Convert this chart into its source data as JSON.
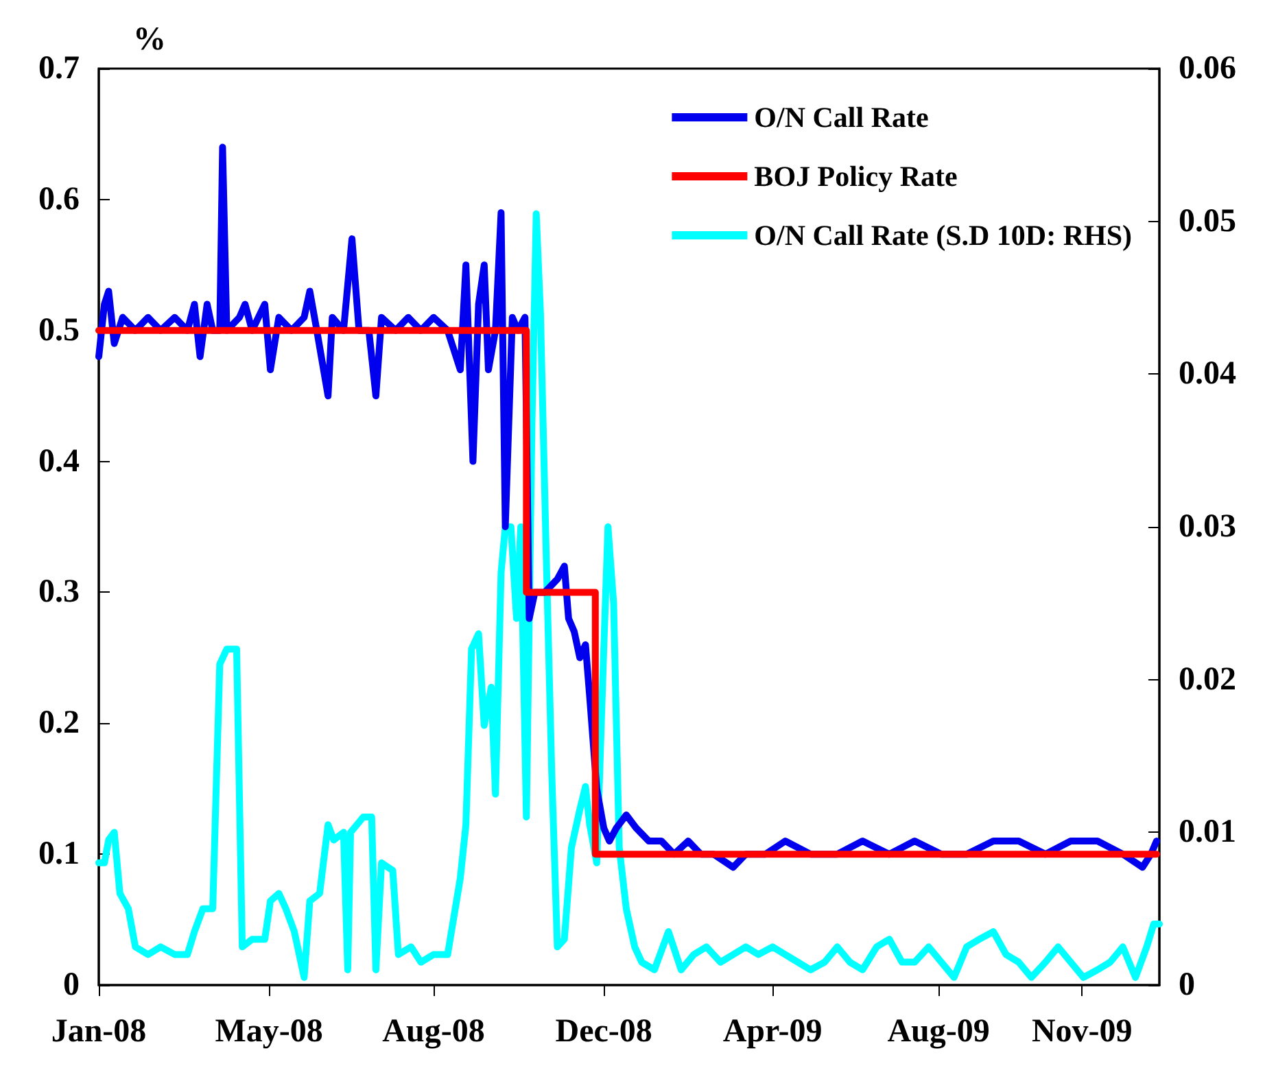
{
  "chart_data": {
    "type": "line",
    "ylabel": "%",
    "xlim": [
      "2008-01-01",
      "2010-01-24"
    ],
    "xticks": [
      {
        "value": "2008-01-01",
        "label": "Jan-08"
      },
      {
        "value": "2008-05-01",
        "label": "May-08"
      },
      {
        "value": "2008-08-26",
        "label": "Aug-08"
      },
      {
        "value": "2008-12-25",
        "label": "Dec-08"
      },
      {
        "value": "2009-04-24",
        "label": "Apr-09"
      },
      {
        "value": "2009-08-20",
        "label": "Aug-09"
      },
      {
        "value": "2009-11-30",
        "label": "Nov-09"
      }
    ],
    "ylim": [
      0,
      0.7
    ],
    "yticks": [
      0,
      0.1,
      0.2,
      0.3,
      0.4,
      0.5,
      0.6,
      0.7
    ],
    "y2lim": [
      0,
      0.06
    ],
    "y2ticks": [
      0,
      0.01,
      0.02,
      0.03,
      0.04,
      0.05,
      0.06
    ],
    "grid": false,
    "legend": "top right",
    "marker": "none",
    "line_style": "solid",
    "series": [
      {
        "name": "O/N Call Rate",
        "color": "#0000ee",
        "x": [
          "2008-01-01",
          "2008-01-05",
          "2008-01-08",
          "2008-01-12",
          "2008-01-18",
          "2008-01-27",
          "2008-02-05",
          "2008-02-14",
          "2008-02-24",
          "2008-03-04",
          "2008-03-09",
          "2008-03-13",
          "2008-03-18",
          "2008-03-22",
          "2008-03-27",
          "2008-03-29",
          "2008-04-01",
          "2008-04-10",
          "2008-04-14",
          "2008-04-19",
          "2008-04-28",
          "2008-05-02",
          "2008-05-08",
          "2008-05-17",
          "2008-05-26",
          "2008-05-30",
          "2008-06-04",
          "2008-06-12",
          "2008-06-15",
          "2008-06-23",
          "2008-06-29",
          "2008-07-04",
          "2008-07-11",
          "2008-07-16",
          "2008-07-20",
          "2008-07-30",
          "2008-08-08",
          "2008-08-17",
          "2008-08-26",
          "2008-09-05",
          "2008-09-14",
          "2008-09-18",
          "2008-09-23",
          "2008-09-27",
          "2008-10-01",
          "2008-10-04",
          "2008-10-09",
          "2008-10-13",
          "2008-10-16",
          "2008-10-21",
          "2008-10-25",
          "2008-10-30",
          "2008-11-02",
          "2008-11-06",
          "2008-11-13",
          "2008-11-22",
          "2008-11-27",
          "2008-11-30",
          "2008-12-04",
          "2008-12-08",
          "2008-12-12",
          "2008-12-15",
          "2008-12-20",
          "2008-12-25",
          "2008-12-29",
          "2009-01-03",
          "2009-01-10",
          "2009-01-17",
          "2009-01-26",
          "2009-02-04",
          "2009-02-13",
          "2009-02-23",
          "2009-03-04",
          "2009-03-13",
          "2009-03-27",
          "2009-04-05",
          "2009-04-19",
          "2009-05-03",
          "2009-05-21",
          "2009-06-09",
          "2009-06-27",
          "2009-07-16",
          "2009-08-03",
          "2009-08-22",
          "2009-09-09",
          "2009-09-28",
          "2009-10-16",
          "2009-11-04",
          "2009-11-22",
          "2009-12-11",
          "2009-12-29",
          "2010-01-12",
          "2010-01-18",
          "2010-01-22"
        ],
        "values": [
          0.48,
          0.52,
          0.53,
          0.49,
          0.51,
          0.5,
          0.51,
          0.5,
          0.51,
          0.5,
          0.52,
          0.48,
          0.52,
          0.5,
          0.5,
          0.64,
          0.5,
          0.51,
          0.52,
          0.5,
          0.52,
          0.47,
          0.51,
          0.5,
          0.51,
          0.53,
          0.5,
          0.45,
          0.51,
          0.5,
          0.57,
          0.5,
          0.5,
          0.45,
          0.51,
          0.5,
          0.51,
          0.5,
          0.51,
          0.5,
          0.47,
          0.55,
          0.4,
          0.52,
          0.55,
          0.47,
          0.5,
          0.59,
          0.35,
          0.51,
          0.5,
          0.51,
          0.28,
          0.3,
          0.3,
          0.31,
          0.32,
          0.28,
          0.27,
          0.25,
          0.26,
          0.22,
          0.15,
          0.12,
          0.11,
          0.12,
          0.13,
          0.12,
          0.11,
          0.11,
          0.1,
          0.11,
          0.1,
          0.1,
          0.09,
          0.1,
          0.1,
          0.11,
          0.1,
          0.1,
          0.11,
          0.1,
          0.11,
          0.1,
          0.1,
          0.11,
          0.11,
          0.1,
          0.11,
          0.11,
          0.1,
          0.09,
          0.1,
          0.11
        ]
      },
      {
        "name": "BOJ Policy Rate",
        "color": "#ff0000",
        "type": "step",
        "x": [
          "2008-01-01",
          "2008-10-31",
          "2008-12-19",
          "2010-01-22"
        ],
        "values": [
          0.5,
          0.3,
          0.1,
          0.1
        ]
      },
      {
        "name": "O/N Call Rate (S.D 10D: RHS)",
        "color": "#00ffff",
        "axis": "y2",
        "x": [
          "2008-01-01",
          "2008-01-05",
          "2008-01-08",
          "2008-01-12",
          "2008-01-16",
          "2008-01-22",
          "2008-01-27",
          "2008-02-05",
          "2008-02-14",
          "2008-02-24",
          "2008-03-04",
          "2008-03-09",
          "2008-03-15",
          "2008-03-22",
          "2008-03-27",
          "2008-04-01",
          "2008-04-08",
          "2008-04-12",
          "2008-04-19",
          "2008-04-28",
          "2008-05-02",
          "2008-05-08",
          "2008-05-13",
          "2008-05-19",
          "2008-05-26",
          "2008-05-30",
          "2008-06-06",
          "2008-06-12",
          "2008-06-16",
          "2008-06-23",
          "2008-06-26",
          "2008-06-28",
          "2008-07-07",
          "2008-07-13",
          "2008-07-16",
          "2008-07-20",
          "2008-07-28",
          "2008-08-01",
          "2008-08-10",
          "2008-08-17",
          "2008-08-26",
          "2008-09-05",
          "2008-09-14",
          "2008-09-18",
          "2008-09-22",
          "2008-09-27",
          "2008-10-01",
          "2008-10-06",
          "2008-10-09",
          "2008-10-13",
          "2008-10-16",
          "2008-10-20",
          "2008-10-24",
          "2008-10-27",
          "2008-10-31",
          "2008-11-04",
          "2008-11-07",
          "2008-11-10",
          "2008-11-14",
          "2008-11-18",
          "2008-11-22",
          "2008-11-27",
          "2008-12-02",
          "2008-12-08",
          "2008-12-12",
          "2008-12-15",
          "2008-12-20",
          "2008-12-25",
          "2008-12-28",
          "2009-01-01",
          "2009-01-05",
          "2009-01-10",
          "2009-01-16",
          "2009-01-21",
          "2009-01-30",
          "2009-02-09",
          "2009-02-18",
          "2009-02-27",
          "2009-03-08",
          "2009-03-18",
          "2009-03-27",
          "2009-04-05",
          "2009-04-14",
          "2009-04-24",
          "2009-05-03",
          "2009-05-12",
          "2009-05-21",
          "2009-05-31",
          "2009-06-09",
          "2009-06-18",
          "2009-06-27",
          "2009-07-07",
          "2009-07-16",
          "2009-07-25",
          "2009-08-03",
          "2009-08-13",
          "2009-08-22",
          "2009-08-31",
          "2009-09-09",
          "2009-09-18",
          "2009-09-28",
          "2009-10-07",
          "2009-10-16",
          "2009-10-25",
          "2009-11-04",
          "2009-11-13",
          "2009-11-22",
          "2009-12-01",
          "2009-12-11",
          "2009-12-20",
          "2009-12-29",
          "2010-01-07",
          "2010-01-15",
          "2010-01-20",
          "2010-01-24"
        ],
        "values": [
          0.008,
          0.008,
          0.0095,
          0.01,
          0.006,
          0.005,
          0.0025,
          0.002,
          0.0025,
          0.002,
          0.002,
          0.0035,
          0.005,
          0.005,
          0.021,
          0.022,
          0.022,
          0.0025,
          0.003,
          0.003,
          0.0055,
          0.006,
          0.005,
          0.0035,
          0.0005,
          0.0055,
          0.006,
          0.0105,
          0.0095,
          0.01,
          0.001,
          0.01,
          0.011,
          0.011,
          0.001,
          0.008,
          0.0075,
          0.002,
          0.0025,
          0.0015,
          0.002,
          0.002,
          0.007,
          0.0105,
          0.022,
          0.023,
          0.017,
          0.0195,
          0.0125,
          0.027,
          0.03,
          0.03,
          0.024,
          0.03,
          0.011,
          0.037,
          0.0505,
          0.044,
          0.0285,
          0.014,
          0.0025,
          0.003,
          0.009,
          0.0115,
          0.013,
          0.0105,
          0.008,
          0.022,
          0.03,
          0.025,
          0.009,
          0.005,
          0.0025,
          0.0015,
          0.001,
          0.0035,
          0.001,
          0.002,
          0.0025,
          0.0015,
          0.002,
          0.0025,
          0.002,
          0.0025,
          0.002,
          0.0015,
          0.001,
          0.0015,
          0.0025,
          0.0015,
          0.001,
          0.0025,
          0.003,
          0.0015,
          0.0015,
          0.0025,
          0.0015,
          0.0005,
          0.0025,
          0.003,
          0.0035,
          0.002,
          0.0015,
          0.0005,
          0.0015,
          0.0025,
          0.0015,
          0.0005,
          0.001,
          0.0015,
          0.0025,
          0.0005,
          0.0025,
          0.004,
          0.004
        ]
      }
    ]
  }
}
